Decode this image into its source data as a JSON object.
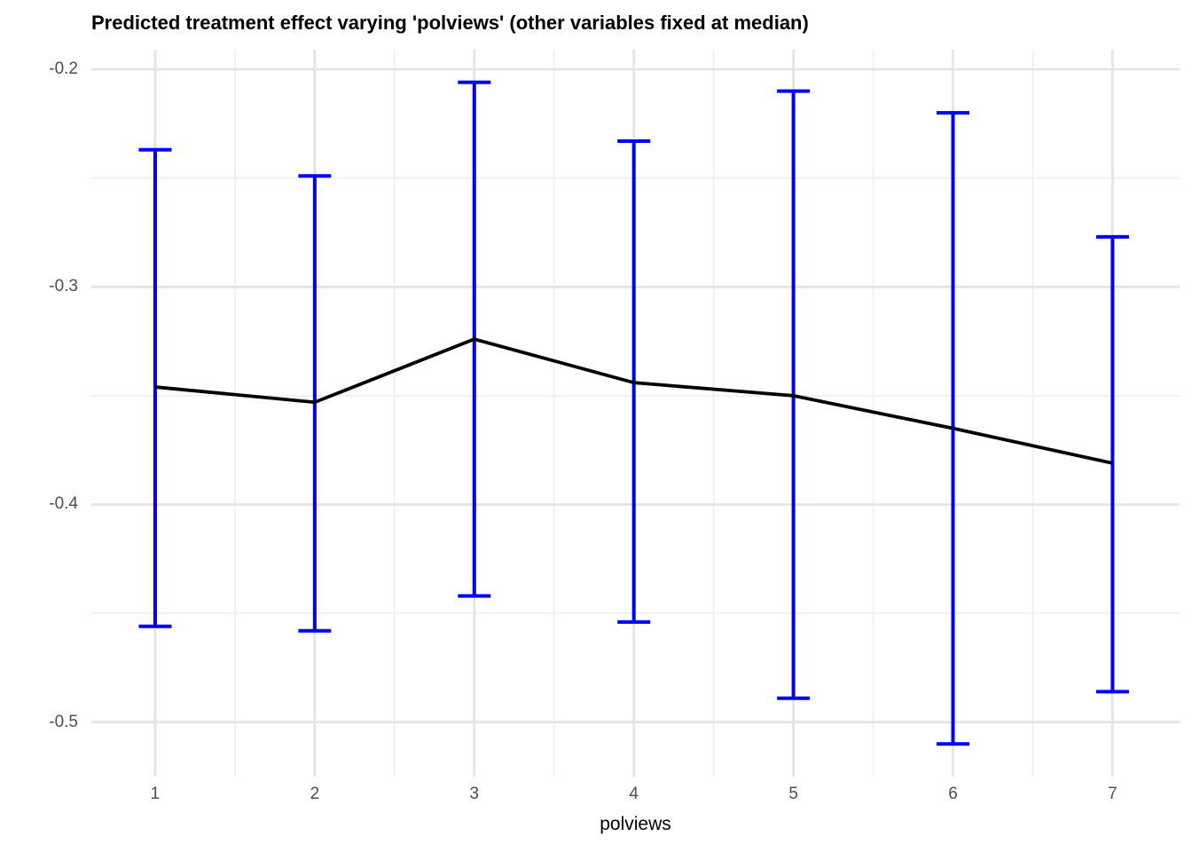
{
  "chart_data": {
    "type": "line",
    "title": "Predicted treatment effect varying 'polviews' (other variables fixed at median)",
    "xlabel": "polviews",
    "ylabel": "",
    "x": [
      1,
      2,
      3,
      4,
      5,
      6,
      7
    ],
    "series": [
      {
        "name": "predicted treatment effect",
        "values": [
          -0.346,
          -0.353,
          -0.324,
          -0.344,
          -0.35,
          -0.365,
          -0.381
        ]
      }
    ],
    "error_bars": {
      "low": [
        -0.456,
        -0.458,
        -0.442,
        -0.454,
        -0.489,
        -0.51,
        -0.486
      ],
      "high": [
        -0.237,
        -0.249,
        -0.206,
        -0.233,
        -0.21,
        -0.22,
        -0.277
      ]
    },
    "x_ticks": [
      1,
      2,
      3,
      4,
      5,
      6,
      7
    ],
    "x_tick_labels": [
      "1",
      "2",
      "3",
      "4",
      "5",
      "6",
      "7"
    ],
    "y_ticks": [
      -0.2,
      -0.3,
      -0.4,
      -0.5
    ],
    "y_tick_labels": [
      "-0.2",
      "-0.3",
      "-0.4",
      "-0.5"
    ],
    "x_minor_ticks": [
      1.5,
      2.5,
      3.5,
      4.5,
      5.5,
      6.5
    ],
    "y_minor_ticks": [
      -0.25,
      -0.35,
      -0.45
    ],
    "xlim": [
      0.6,
      7.42
    ],
    "ylim": [
      -0.525,
      -0.191
    ],
    "grid": true,
    "legend": false,
    "colors": {
      "errorbar": "#0000FF",
      "line": "#000000",
      "grid_major": "#E4E4E4",
      "grid_minor": "#F1F1F1",
      "tick_text": "#4D4D4D",
      "title_text": "#000000"
    }
  }
}
